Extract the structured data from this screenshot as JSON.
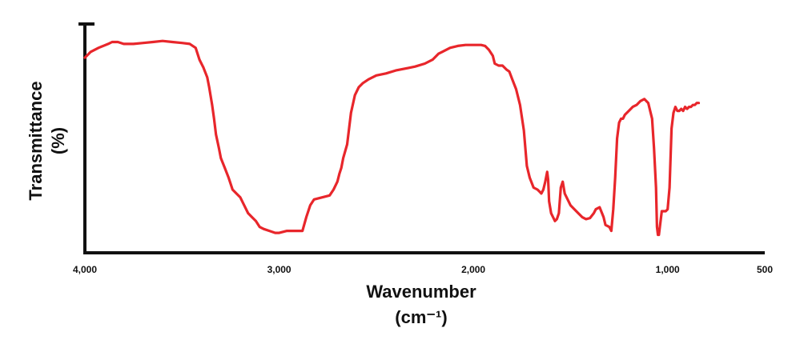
{
  "chart_data": {
    "type": "line",
    "title": "",
    "xlabel": "Wavenumber",
    "xlabel_unit": "(cm⁻¹)",
    "ylabel": "Transmittance",
    "ylabel_unit": "(%)",
    "x_ticks": [
      "4,000",
      "3,000",
      "2,000",
      "1,000",
      "500"
    ],
    "x_tick_values": [
      4000,
      3000,
      2000,
      1000,
      500
    ],
    "xlim": [
      4000,
      500
    ],
    "x_reversed": true,
    "ylim": [
      0,
      100
    ],
    "y_ticks_shown": false,
    "grid": false,
    "line_color": "#e8262b",
    "series": [
      {
        "values": [
          [
            4000,
            91
          ],
          [
            3970,
            94
          ],
          [
            3930,
            96
          ],
          [
            3880,
            98
          ],
          [
            3860,
            99
          ],
          [
            3830,
            99
          ],
          [
            3800,
            98
          ],
          [
            3750,
            98
          ],
          [
            3700,
            98.5
          ],
          [
            3650,
            99
          ],
          [
            3600,
            99.5
          ],
          [
            3550,
            99
          ],
          [
            3500,
            98.5
          ],
          [
            3460,
            98
          ],
          [
            3430,
            96
          ],
          [
            3410,
            90
          ],
          [
            3390,
            86
          ],
          [
            3370,
            81
          ],
          [
            3360,
            76
          ],
          [
            3345,
            67
          ],
          [
            3335,
            60
          ],
          [
            3325,
            52
          ],
          [
            3310,
            45
          ],
          [
            3300,
            40
          ],
          [
            3280,
            35
          ],
          [
            3260,
            30
          ],
          [
            3240,
            24
          ],
          [
            3220,
            22
          ],
          [
            3200,
            20
          ],
          [
            3180,
            16
          ],
          [
            3160,
            12
          ],
          [
            3140,
            10
          ],
          [
            3120,
            8
          ],
          [
            3100,
            5
          ],
          [
            3080,
            4
          ],
          [
            3050,
            3
          ],
          [
            3020,
            2
          ],
          [
            3000,
            2
          ],
          [
            2960,
            3
          ],
          [
            2920,
            3
          ],
          [
            2880,
            3
          ],
          [
            2860,
            10
          ],
          [
            2840,
            16
          ],
          [
            2820,
            19
          ],
          [
            2780,
            20
          ],
          [
            2740,
            21
          ],
          [
            2720,
            24
          ],
          [
            2700,
            28
          ],
          [
            2690,
            32
          ],
          [
            2680,
            35
          ],
          [
            2670,
            40
          ],
          [
            2650,
            47
          ],
          [
            2640,
            55
          ],
          [
            2630,
            63
          ],
          [
            2610,
            72
          ],
          [
            2590,
            76
          ],
          [
            2570,
            78
          ],
          [
            2540,
            80
          ],
          [
            2500,
            82
          ],
          [
            2450,
            83
          ],
          [
            2400,
            84.5
          ],
          [
            2350,
            85.5
          ],
          [
            2300,
            86.5
          ],
          [
            2250,
            88
          ],
          [
            2210,
            90
          ],
          [
            2180,
            93
          ],
          [
            2160,
            94
          ],
          [
            2120,
            96
          ],
          [
            2080,
            97
          ],
          [
            2040,
            97.5
          ],
          [
            2000,
            97.5
          ],
          [
            1960,
            97.5
          ],
          [
            1940,
            97
          ],
          [
            1920,
            95
          ],
          [
            1900,
            92
          ],
          [
            1890,
            88
          ],
          [
            1870,
            87
          ],
          [
            1850,
            87
          ],
          [
            1830,
            85
          ],
          [
            1815,
            84
          ],
          [
            1800,
            80
          ],
          [
            1780,
            75
          ],
          [
            1760,
            67
          ],
          [
            1740,
            54
          ],
          [
            1725,
            36
          ],
          [
            1710,
            30
          ],
          [
            1690,
            25
          ],
          [
            1670,
            24
          ],
          [
            1660,
            23
          ],
          [
            1650,
            22
          ],
          [
            1640,
            24
          ],
          [
            1630,
            28
          ],
          [
            1620,
            33
          ],
          [
            1615,
            29
          ],
          [
            1610,
            18
          ],
          [
            1600,
            12
          ],
          [
            1590,
            10
          ],
          [
            1580,
            8
          ],
          [
            1570,
            9
          ],
          [
            1560,
            12
          ],
          [
            1550,
            25
          ],
          [
            1540,
            28
          ],
          [
            1530,
            22
          ],
          [
            1520,
            20
          ],
          [
            1510,
            18
          ],
          [
            1500,
            16
          ],
          [
            1480,
            14
          ],
          [
            1460,
            12
          ],
          [
            1440,
            10
          ],
          [
            1420,
            9
          ],
          [
            1400,
            9.5
          ],
          [
            1380,
            12
          ],
          [
            1370,
            14
          ],
          [
            1350,
            15
          ],
          [
            1330,
            10
          ],
          [
            1320,
            6
          ],
          [
            1300,
            5
          ],
          [
            1290,
            3
          ],
          [
            1280,
            14
          ],
          [
            1270,
            30
          ],
          [
            1260,
            50
          ],
          [
            1250,
            58
          ],
          [
            1240,
            60
          ],
          [
            1230,
            60
          ],
          [
            1220,
            62
          ],
          [
            1200,
            64
          ],
          [
            1180,
            66
          ],
          [
            1160,
            67
          ],
          [
            1140,
            69
          ],
          [
            1120,
            70
          ],
          [
            1100,
            68
          ],
          [
            1080,
            60
          ],
          [
            1070,
            45
          ],
          [
            1060,
            25
          ],
          [
            1055,
            5
          ],
          [
            1050,
            1
          ],
          [
            1045,
            1
          ],
          [
            1040,
            5
          ],
          [
            1030,
            13
          ],
          [
            1010,
            13
          ],
          [
            1000,
            14
          ],
          [
            990,
            25
          ],
          [
            980,
            55
          ],
          [
            970,
            63
          ],
          [
            960,
            66
          ],
          [
            950,
            64
          ],
          [
            940,
            64
          ],
          [
            930,
            65
          ],
          [
            920,
            64
          ],
          [
            910,
            66
          ],
          [
            900,
            65
          ],
          [
            890,
            66
          ],
          [
            880,
            66
          ],
          [
            870,
            67
          ],
          [
            860,
            67
          ],
          [
            850,
            68
          ],
          [
            840,
            68
          ]
        ]
      }
    ]
  }
}
